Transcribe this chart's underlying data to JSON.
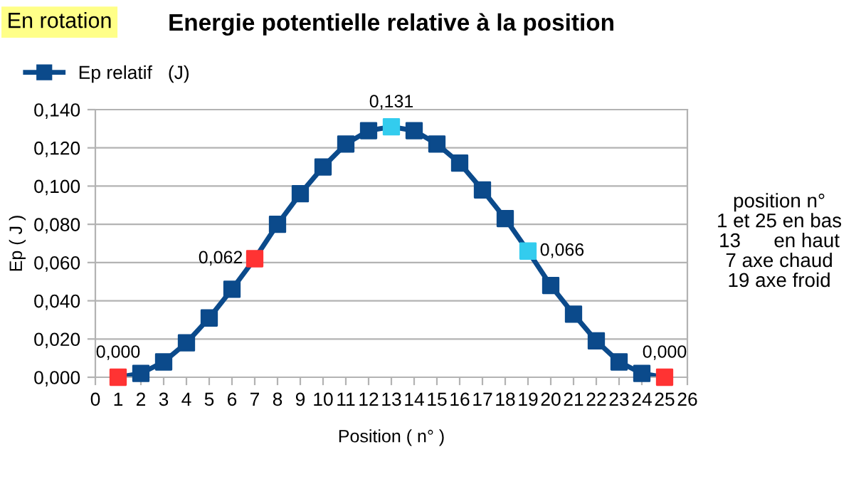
{
  "chart_data": {
    "type": "line",
    "title": "Energie potentielle relative à la position",
    "xlabel": "Position ( n° )",
    "ylabel": "Ep ( J )",
    "x": [
      1,
      2,
      3,
      4,
      5,
      6,
      7,
      8,
      9,
      10,
      11,
      12,
      13,
      14,
      15,
      16,
      17,
      18,
      19,
      20,
      21,
      22,
      23,
      24,
      25
    ],
    "series": [
      {
        "name": "Ep relatif   (J)",
        "color": "#0b4a8b",
        "values": [
          0.0,
          0.002,
          0.008,
          0.018,
          0.031,
          0.046,
          0.062,
          0.08,
          0.096,
          0.11,
          0.122,
          0.129,
          0.131,
          0.129,
          0.122,
          0.112,
          0.098,
          0.083,
          0.066,
          0.048,
          0.033,
          0.019,
          0.008,
          0.002,
          0.0
        ],
        "colors": [
          "#ff3333",
          "#0b4a8b",
          "#0b4a8b",
          "#0b4a8b",
          "#0b4a8b",
          "#0b4a8b",
          "#ff3333",
          "#0b4a8b",
          "#0b4a8b",
          "#0b4a8b",
          "#0b4a8b",
          "#0b4a8b",
          "#33ccee",
          "#0b4a8b",
          "#0b4a8b",
          "#0b4a8b",
          "#0b4a8b",
          "#0b4a8b",
          "#33ccee",
          "#0b4a8b",
          "#0b4a8b",
          "#0b4a8b",
          "#0b4a8b",
          "#0b4a8b",
          "#ff3333"
        ],
        "value_labels": [
          "0,000",
          null,
          null,
          null,
          null,
          null,
          "0,062",
          null,
          null,
          null,
          null,
          null,
          "0,131",
          null,
          null,
          null,
          null,
          null,
          "0,066",
          null,
          null,
          null,
          null,
          null,
          "0,000"
        ]
      }
    ],
    "xlim": [
      0,
      26
    ],
    "xticks": [
      0,
      1,
      2,
      3,
      4,
      5,
      6,
      7,
      8,
      9,
      10,
      11,
      12,
      13,
      14,
      15,
      16,
      17,
      18,
      19,
      20,
      21,
      22,
      23,
      24,
      25,
      26
    ],
    "ylim": [
      0,
      0.14
    ],
    "yticks": [
      {
        "value": 0,
        "label": "0,000"
      },
      {
        "value": 0.02,
        "label": "0,020"
      },
      {
        "value": 0.04,
        "label": "0,040"
      },
      {
        "value": 0.06,
        "label": "0,060"
      },
      {
        "value": 0.08,
        "label": "0,080"
      },
      {
        "value": 0.1,
        "label": "0,100"
      },
      {
        "value": 0.12,
        "label": "0,120"
      },
      {
        "value": 0.14,
        "label": "0,140"
      }
    ],
    "grid": "y",
    "legend": "top left",
    "marker": "square",
    "line_style": "solid",
    "annotations": [
      "En rotation",
      "position n°\n1 et 25 en bas\n13      en haut\n7 axe chaud\n19 axe froid"
    ]
  }
}
